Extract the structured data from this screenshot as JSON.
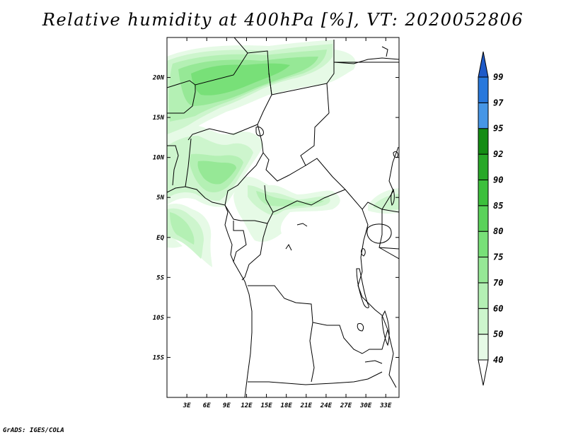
{
  "title": "Relative humidity at 400hPa [%], VT: 2020052806",
  "credit": "GrADS: IGES/COLA",
  "map": {
    "lon_labels": [
      "3E",
      "6E",
      "9E",
      "12E",
      "15E",
      "18E",
      "21E",
      "24E",
      "27E",
      "30E",
      "33E"
    ],
    "lat_labels": [
      "20N",
      "15N",
      "10N",
      "5N",
      "EQ",
      "5S",
      "10S",
      "15S"
    ],
    "lon_values": [
      3,
      6,
      9,
      12,
      15,
      18,
      21,
      24,
      27,
      30,
      33
    ],
    "lat_values": [
      20,
      15,
      10,
      5,
      0,
      -5,
      -10,
      -15
    ],
    "lon_range": [
      0,
      35
    ],
    "lat_range": [
      -20,
      25
    ]
  },
  "colorbar": {
    "labels": [
      "40",
      "50",
      "60",
      "70",
      "75",
      "80",
      "85",
      "90",
      "92",
      "95",
      "97",
      "99"
    ],
    "colors": [
      "#ffffff",
      "#e6fae6",
      "#cdf5cd",
      "#b4f0b4",
      "#96e896",
      "#78e078",
      "#5ad25a",
      "#3cc03c",
      "#28a828",
      "#148c14",
      "#4696e6",
      "#2878dc",
      "#1e5ac8"
    ]
  },
  "humidity_colors": {
    "c50": "#e6fae6",
    "c60": "#cdf5cd",
    "c70": "#b4f0b4",
    "c75": "#96e896",
    "c80": "#78e078"
  }
}
